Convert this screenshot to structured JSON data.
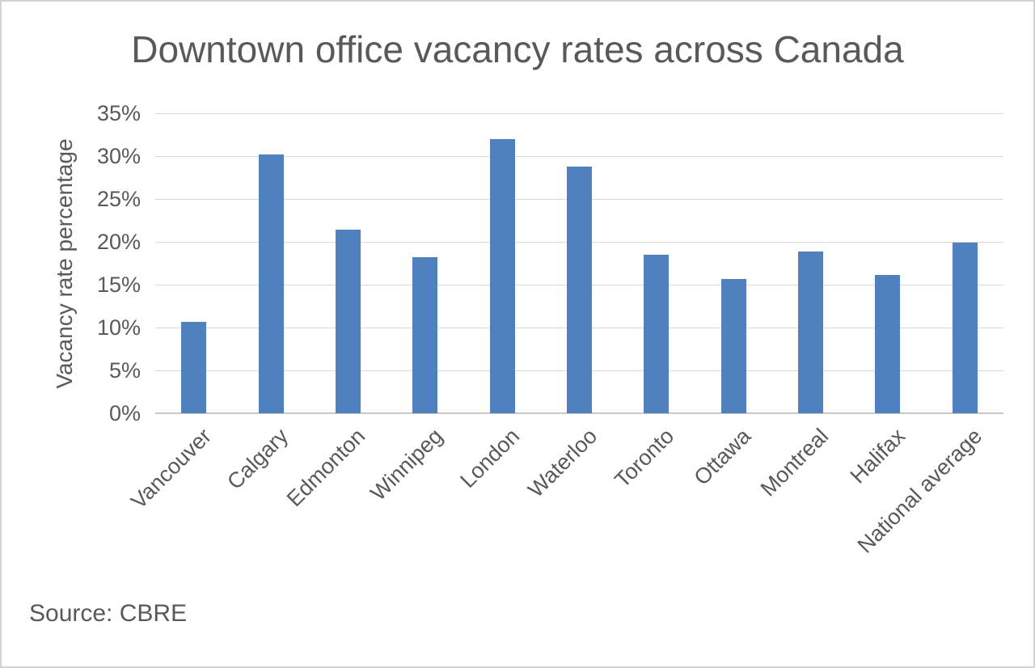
{
  "page": {
    "source_note": "Source: CBRE"
  },
  "chart_data": {
    "type": "bar",
    "title": "Downtown office vacancy rates across Canada",
    "categories": [
      "Vancouver",
      "Calgary",
      "Edmonton",
      "Winnipeg",
      "London",
      "Waterloo",
      "Toronto",
      "Ottawa",
      "Montreal",
      "Halifax",
      "National average"
    ],
    "values": [
      10.7,
      30.2,
      21.4,
      18.2,
      32.0,
      28.8,
      18.5,
      15.7,
      18.9,
      16.1,
      19.9
    ],
    "xlabel": "",
    "ylabel": "Vacancy rate percentage",
    "ylim": [
      0,
      35
    ],
    "ytick_step": 5,
    "ytick_labels": [
      "0%",
      "5%",
      "10%",
      "15%",
      "20%",
      "25%",
      "30%",
      "35%"
    ],
    "grid": true,
    "legend_position": "none",
    "colors": {
      "bar": "#4e81bd",
      "gridline": "#d9d9d9",
      "zero_axis": "#c9c9c9",
      "text": "#595959"
    },
    "source": "Source: CBRE"
  }
}
